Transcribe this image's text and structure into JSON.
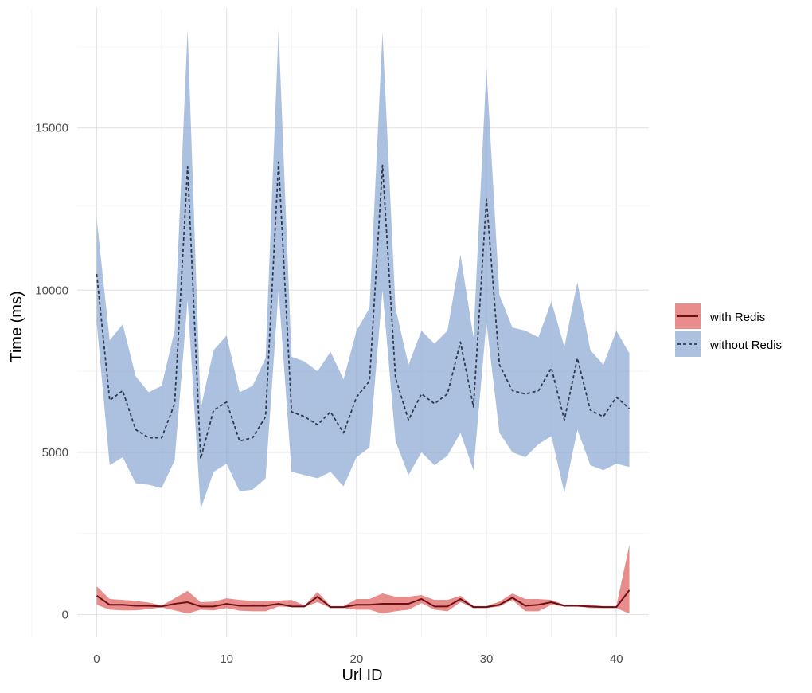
{
  "chart_data": {
    "type": "area",
    "title": "",
    "xlabel": "Url ID",
    "ylabel": "Time (ms)",
    "xlim": [
      -1.5,
      42.5
    ],
    "ylim": [
      -700,
      18700
    ],
    "xticks": [
      0,
      10,
      20,
      30,
      40
    ],
    "yticks": [
      0,
      5000,
      10000,
      15000
    ],
    "xtick_labels": [
      "0",
      "10",
      "20",
      "30",
      "40"
    ],
    "ytick_labels": [
      "0",
      "5000",
      "10000",
      "15000"
    ],
    "grid": true,
    "legend_position": "right",
    "x": [
      0,
      1,
      2,
      3,
      4,
      5,
      6,
      7,
      8,
      9,
      10,
      11,
      12,
      13,
      14,
      15,
      16,
      17,
      18,
      19,
      20,
      21,
      22,
      23,
      24,
      25,
      26,
      27,
      28,
      29,
      30,
      31,
      32,
      33,
      34,
      35,
      36,
      37,
      38,
      39,
      40,
      41
    ],
    "series": [
      {
        "name": "with Redis",
        "line_style": "solid",
        "line_color": "#6b0f14",
        "fill_color": "#e06666",
        "mean": [
          580,
          300,
          300,
          270,
          270,
          250,
          330,
          380,
          250,
          250,
          330,
          270,
          270,
          270,
          330,
          250,
          250,
          550,
          230,
          230,
          300,
          300,
          330,
          330,
          330,
          480,
          250,
          250,
          480,
          230,
          230,
          300,
          520,
          270,
          300,
          380,
          270,
          270,
          250,
          230,
          230,
          750
        ],
        "lower": [
          300,
          150,
          130,
          130,
          170,
          220,
          130,
          30,
          150,
          130,
          200,
          120,
          100,
          100,
          250,
          230,
          230,
          380,
          200,
          200,
          150,
          150,
          30,
          100,
          150,
          350,
          150,
          100,
          380,
          200,
          200,
          250,
          450,
          100,
          100,
          300,
          250,
          250,
          200,
          200,
          200,
          30
        ],
        "upper": [
          870,
          480,
          450,
          420,
          370,
          280,
          500,
          730,
          380,
          400,
          500,
          450,
          420,
          420,
          430,
          450,
          280,
          700,
          260,
          260,
          480,
          480,
          650,
          550,
          550,
          600,
          450,
          450,
          580,
          260,
          260,
          400,
          650,
          480,
          480,
          450,
          300,
          300,
          300,
          260,
          260,
          2150
        ]
      },
      {
        "name": "without Redis",
        "line_style": "dashed",
        "line_color": "#2e3a4f",
        "fill_color": "#7f9fce",
        "mean": [
          10500,
          6600,
          6900,
          5700,
          5450,
          5450,
          6500,
          13800,
          4800,
          6300,
          6550,
          5350,
          5450,
          6100,
          13950,
          6250,
          6100,
          5850,
          6250,
          5600,
          6700,
          7200,
          13850,
          7300,
          6000,
          6800,
          6500,
          6800,
          8400,
          6400,
          12800,
          7700,
          6900,
          6800,
          6900,
          7600,
          6000,
          7900,
          6300,
          6100,
          6700,
          6350
        ],
        "lower": [
          9000,
          4600,
          4850,
          4050,
          4000,
          3900,
          4750,
          9700,
          3250,
          4400,
          4650,
          3800,
          3850,
          4200,
          10000,
          4400,
          4300,
          4200,
          4400,
          3950,
          4850,
          5150,
          10000,
          5350,
          4300,
          5000,
          4600,
          4900,
          5600,
          4450,
          9000,
          5600,
          5000,
          4850,
          5250,
          5500,
          3750,
          5700,
          4600,
          4450,
          4650,
          4550
        ],
        "upper": [
          12200,
          8450,
          8950,
          7350,
          6850,
          7050,
          8750,
          18050,
          6350,
          8150,
          8600,
          6850,
          7050,
          7900,
          18050,
          7950,
          7800,
          7500,
          8100,
          7250,
          8750,
          9450,
          17950,
          9450,
          7700,
          8750,
          8350,
          8750,
          11100,
          8550,
          16850,
          9850,
          8850,
          8750,
          8550,
          9650,
          8250,
          10250,
          8150,
          7700,
          8750,
          8050
        ]
      }
    ]
  }
}
